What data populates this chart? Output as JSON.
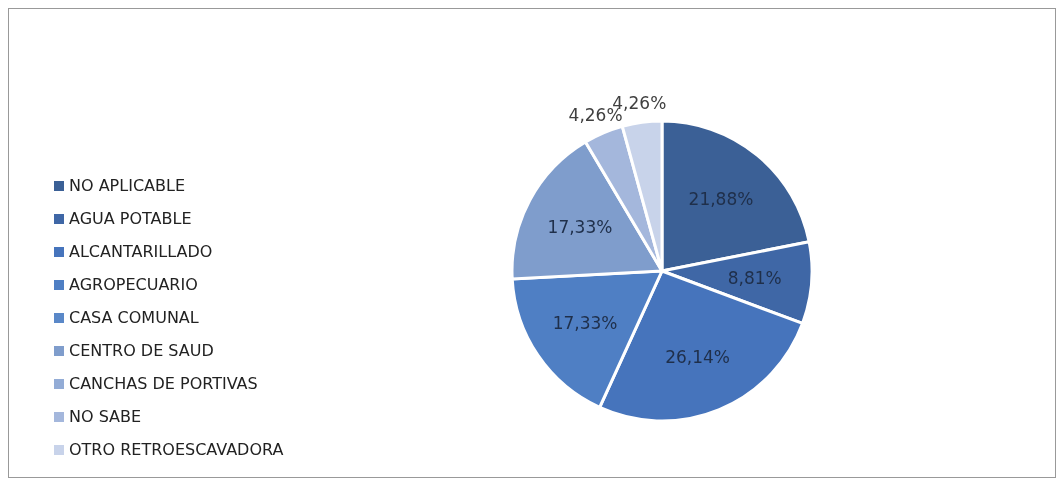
{
  "chart_data": {
    "type": "pie",
    "categories": [
      "NO APLICABLE",
      "AGUA POTABLE",
      "ALCANTARILLADO",
      "AGROPECUARIO",
      "CASA COMUNAL",
      "CENTRO DE SAUD",
      "CANCHAS DE PORTIVAS",
      "NO SABE",
      "OTRO RETROESCAVADORA"
    ],
    "values": [
      21.88,
      8.81,
      26.14,
      17.33,
      0,
      17.33,
      0,
      4.26,
      4.26
    ],
    "value_labels": [
      "21,88%",
      "8,81%",
      "26,14%",
      "17,33%",
      null,
      "17,33%",
      null,
      "4,26%",
      "4,26%"
    ],
    "colors": [
      "#3b6096",
      "#3f67a6",
      "#4674bc",
      "#4f7fc4",
      "#5a88c8",
      "#7f9dcc",
      "#93acd6",
      "#a4b7dc",
      "#c8d3ea"
    ],
    "legend": "left"
  }
}
